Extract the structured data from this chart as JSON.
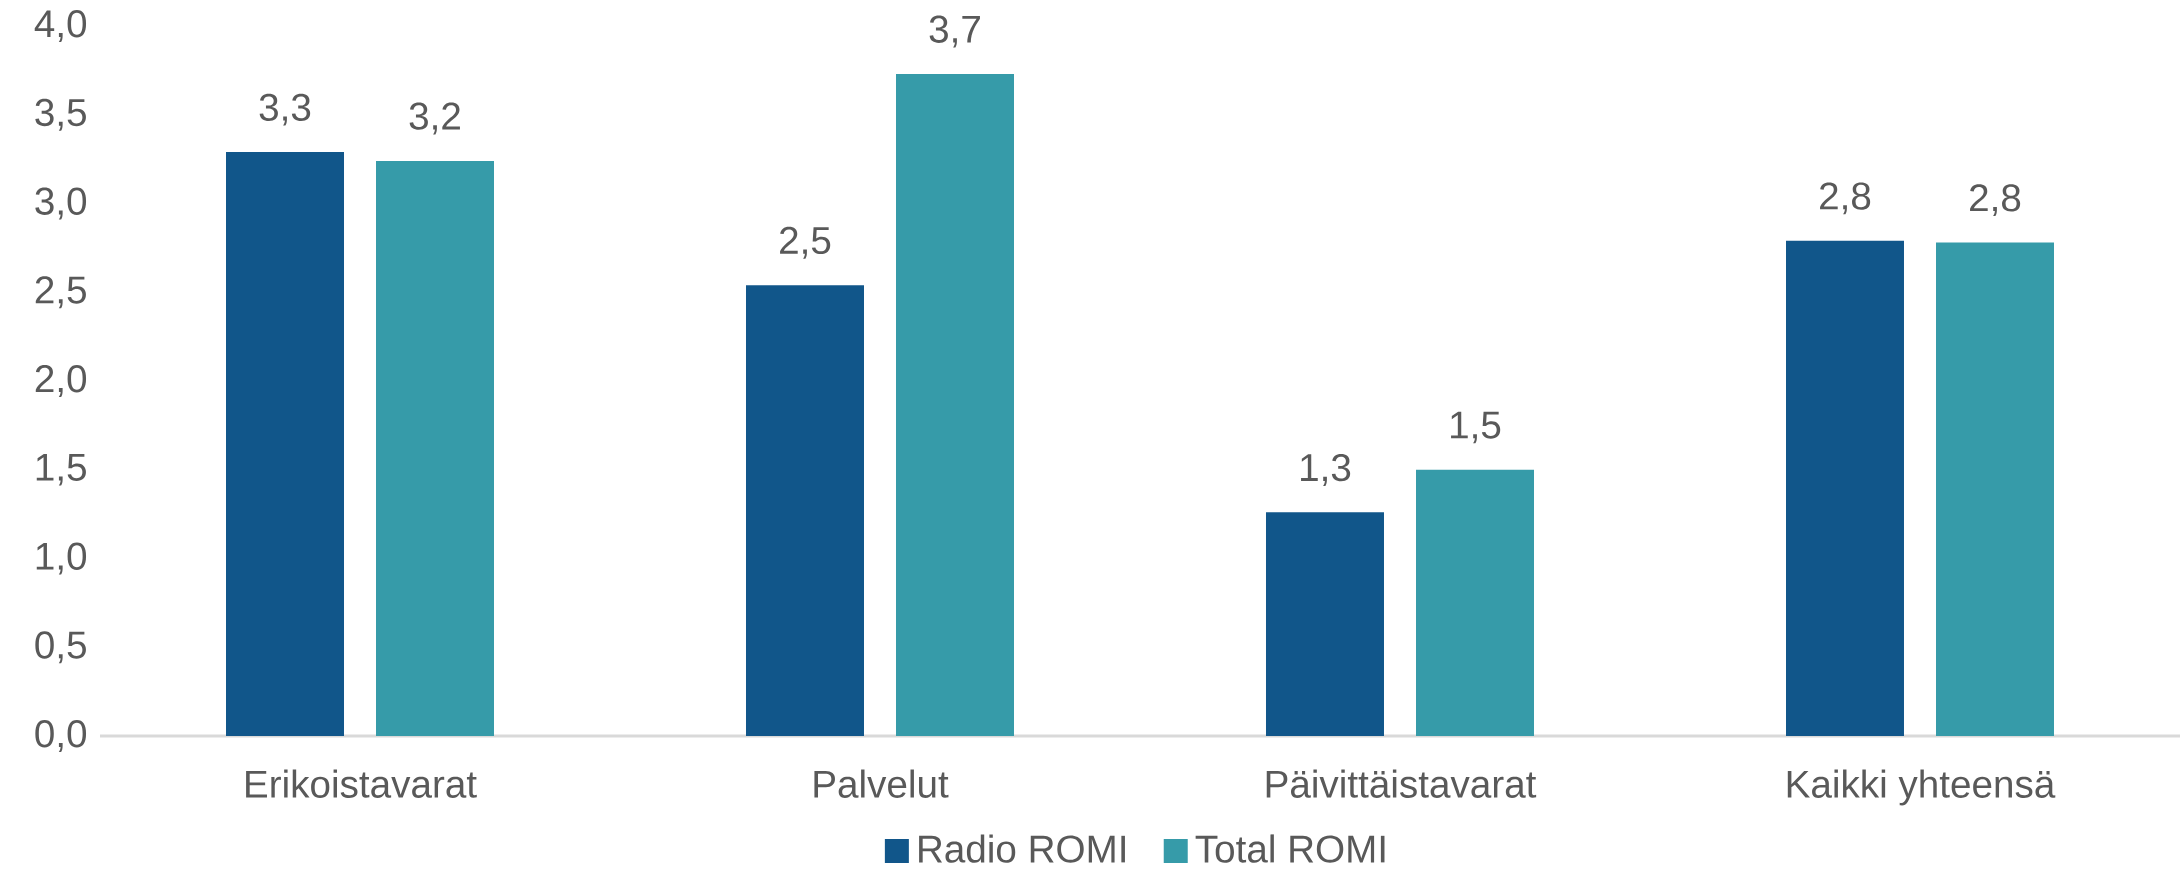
{
  "chart_data": {
    "type": "bar",
    "categories": [
      "Erikoistavarat",
      "Palvelut",
      "Päivittäistavarat",
      "Kaikki yhteensä"
    ],
    "series": [
      {
        "name": "Radio ROMI",
        "color": "#11568a",
        "values": [
          3.29,
          2.54,
          1.26,
          2.79
        ],
        "value_labels": [
          "3,3",
          "2,5",
          "1,3",
          "2,8"
        ]
      },
      {
        "name": "Total ROMI",
        "color": "#369ba9",
        "values": [
          3.24,
          3.73,
          1.5,
          2.78
        ],
        "value_labels": [
          "3,2",
          "3,7",
          "1,5",
          "2,8"
        ]
      }
    ],
    "ylim": [
      0,
      4
    ],
    "yticks": [
      {
        "value": 0,
        "label": "0,0"
      },
      {
        "value": 0.5,
        "label": "0,5"
      },
      {
        "value": 1,
        "label": "1,0"
      },
      {
        "value": 1.5,
        "label": "1,5"
      },
      {
        "value": 2,
        "label": "2,0"
      },
      {
        "value": 2.5,
        "label": "2,5"
      },
      {
        "value": 3,
        "label": "3,0"
      },
      {
        "value": 3.5,
        "label": "3,5"
      },
      {
        "value": 4,
        "label": "4,0"
      }
    ],
    "legend": "bottom"
  }
}
